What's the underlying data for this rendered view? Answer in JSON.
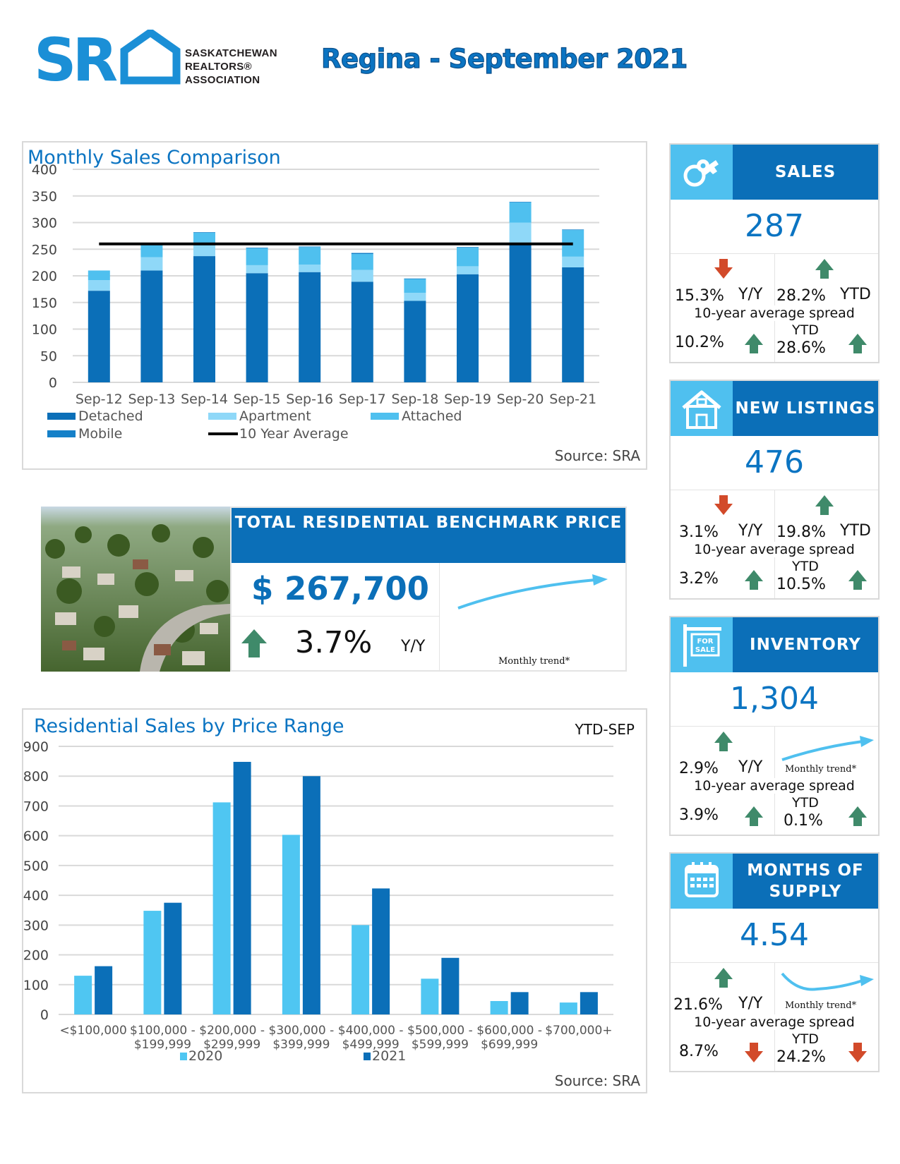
{
  "header": {
    "org_line1": "SASKATCHEWAN",
    "org_line2": "REALTORS®",
    "org_line3": "ASSOCIATION",
    "logo_letters": "SR",
    "title": "Regina - September 2021"
  },
  "colors": {
    "detached": "#0b6fb8",
    "apartment": "#8fd8f8",
    "attached": "#4fc0ef",
    "mobile": "#1580c8",
    "avg_line": "#000000",
    "y2020": "#4fc6f2",
    "y2021": "#0b6fb8",
    "up_arrow": "#3f8a6a",
    "down_arrow": "#d24a2a"
  },
  "chart_data": [
    {
      "type": "bar",
      "stacked": true,
      "title": "Monthly Sales Comparison",
      "categories": [
        "Sep-12",
        "Sep-13",
        "Sep-14",
        "Sep-15",
        "Sep-16",
        "Sep-17",
        "Sep-18",
        "Sep-19",
        "Sep-20",
        "Sep-21"
      ],
      "series": [
        {
          "name": "Detached",
          "values": [
            172,
            210,
            237,
            205,
            207,
            189,
            153,
            203,
            260,
            216
          ]
        },
        {
          "name": "Apartment",
          "values": [
            20,
            25,
            20,
            15,
            14,
            22,
            15,
            15,
            40,
            20
          ]
        },
        {
          "name": "Attached",
          "values": [
            18,
            24,
            24,
            32,
            33,
            30,
            26,
            35,
            38,
            50
          ]
        },
        {
          "name": "Mobile",
          "values": [
            0,
            0,
            1,
            1,
            1,
            2,
            1,
            1,
            1,
            1
          ]
        }
      ],
      "ten_year_average": 260,
      "ten_year_label": "10 Year Average",
      "ylim": [
        0,
        400
      ],
      "yticks": [
        0,
        50,
        100,
        150,
        200,
        250,
        300,
        350,
        400
      ],
      "legend": [
        "Detached",
        "Apartment",
        "Attached",
        "Mobile",
        "10 Year Average"
      ],
      "source": "Source: SRA"
    },
    {
      "type": "bar",
      "title": "Residential Sales by Price Range",
      "period": "YTD-SEP",
      "categories": [
        "<$100,000",
        "$100,000 - $199,999",
        "$200,000 - $299,999",
        "$300,000 - $399,999",
        "$400,000 - $499,999",
        "$500,000 - $599,999",
        "$600,000 - $699,999",
        "$700,000+"
      ],
      "category_lines": [
        [
          "<$100,000"
        ],
        [
          "$100,000 -",
          "$199,999"
        ],
        [
          "$200,000 -",
          "$299,999"
        ],
        [
          "$300,000 -",
          "$399,999"
        ],
        [
          "$400,000 -",
          "$499,999"
        ],
        [
          "$500,000 -",
          "$599,999"
        ],
        [
          "$600,000 -",
          "$699,999"
        ],
        [
          "$700,000+"
        ]
      ],
      "series": [
        {
          "name": "2020",
          "values": [
            130,
            348,
            712,
            603,
            300,
            120,
            45,
            40
          ]
        },
        {
          "name": "2021",
          "values": [
            162,
            375,
            848,
            800,
            423,
            190,
            75,
            75
          ]
        }
      ],
      "ylim": [
        0,
        900
      ],
      "yticks": [
        0,
        100,
        200,
        300,
        400,
        500,
        600,
        700,
        800,
        900
      ],
      "source": "Source: SRA"
    }
  ],
  "benchmark": {
    "title": "TOTAL RESIDENTIAL BENCHMARK PRICE",
    "price": "$ 267,700",
    "change": "3.7%",
    "change_label": "Y/Y",
    "trend_caption": "Monthly trend*"
  },
  "cards": [
    {
      "label": "SALES",
      "icon": "keys-icon",
      "value": "287",
      "yy": "15.3%",
      "yy_label": "Y/Y",
      "yy_dir": "down",
      "ytd": "28.2%",
      "ytd_label": "YTD",
      "ytd_dir": "up",
      "spread_label": "10-year average spread",
      "spread_yy": "10.2%",
      "spread_yy_dir": "up",
      "spread_ytd_label": "YTD",
      "spread_ytd": "28.6%",
      "spread_ytd_dir": "up"
    },
    {
      "label": "NEW LISTINGS",
      "icon": "house-icon",
      "value": "476",
      "yy": "3.1%",
      "yy_label": "Y/Y",
      "yy_dir": "down",
      "ytd": "19.8%",
      "ytd_label": "YTD",
      "ytd_dir": "up",
      "spread_label": "10-year average spread",
      "spread_yy": "3.2%",
      "spread_yy_dir": "up",
      "spread_ytd_label": "YTD",
      "spread_ytd": "10.5%",
      "spread_ytd_dir": "up"
    },
    {
      "label": "INVENTORY",
      "icon": "for-sale-sign-icon",
      "sign_text": "FOR SALE",
      "value": "1,304",
      "yy": "2.9%",
      "yy_label": "Y/Y",
      "yy_dir": "up",
      "trend_caption": "Monthly trend*",
      "spread_label": "10-year average spread",
      "spread_yy": "3.9%",
      "spread_yy_dir": "up",
      "spread_ytd_label": "YTD",
      "spread_ytd": "0.1%",
      "spread_ytd_dir": "up"
    },
    {
      "label": "MONTHS OF SUPPLY",
      "icon": "calendar-icon",
      "value": "4.54",
      "yy": "21.6%",
      "yy_label": "Y/Y",
      "yy_dir": "up",
      "trend_caption": "Monthly trend*",
      "spread_label": "10-year average spread",
      "spread_yy": "8.7%",
      "spread_yy_dir": "down",
      "spread_ytd_label": "YTD",
      "spread_ytd": "24.2%",
      "spread_ytd_dir": "down"
    }
  ]
}
